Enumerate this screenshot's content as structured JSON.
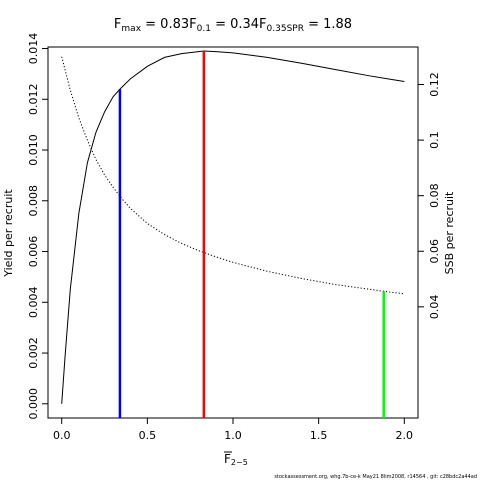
{
  "chart_data": {
    "type": "line",
    "title": {
      "fmax": {
        "main": "F",
        "sub": "max",
        "value": " = 0.83"
      },
      "f01": {
        "main": "F",
        "sub": "0.1",
        "value": " = 0.34"
      },
      "f035": {
        "main": "F",
        "sub": "0.35SPR",
        "value": " = 1.88"
      }
    },
    "xlabel": {
      "main": "F",
      "sub": "2−5",
      "overline": true
    },
    "ylabel_left": "Yield per recruit",
    "ylabel_right": "SSB per recruit",
    "xlim": [
      -0.08,
      2.08
    ],
    "ylim_left": [
      -0.00056,
      0.01406
    ],
    "ylim_right": [
      0.0,
      0.1335
    ],
    "x_ticks": [
      {
        "value": 0.0,
        "label": "0.0"
      },
      {
        "value": 0.5,
        "label": "0.5"
      },
      {
        "value": 1.0,
        "label": "1.0"
      },
      {
        "value": 1.5,
        "label": "1.5"
      },
      {
        "value": 2.0,
        "label": "2.0"
      }
    ],
    "y_left_ticks": [
      {
        "value": 0.0,
        "label": "0.000"
      },
      {
        "value": 0.002,
        "label": "0.002"
      },
      {
        "value": 0.004,
        "label": "0.004"
      },
      {
        "value": 0.006,
        "label": "0.006"
      },
      {
        "value": 0.008,
        "label": "0.008"
      },
      {
        "value": 0.01,
        "label": "0.010"
      },
      {
        "value": 0.012,
        "label": "0.012"
      },
      {
        "value": 0.014,
        "label": "0.014"
      }
    ],
    "y_right_ticks": [
      {
        "value": 0.04,
        "label": "0.04"
      },
      {
        "value": 0.06,
        "label": "0.06"
      },
      {
        "value": 0.08,
        "label": "0.08"
      },
      {
        "value": 0.1,
        "label": "0.1"
      },
      {
        "value": 0.12,
        "label": "0.12"
      }
    ],
    "series": [
      {
        "axis": "left",
        "color": "#000000",
        "style": "solid",
        "x": [
          0.0,
          0.02,
          0.05,
          0.1,
          0.15,
          0.2,
          0.25,
          0.3,
          0.34,
          0.4,
          0.5,
          0.6,
          0.7,
          0.83,
          0.9,
          1.0,
          1.2,
          1.4,
          1.6,
          1.8,
          2.0
        ],
        "values": [
          0.0,
          0.0019,
          0.0045,
          0.0075,
          0.0095,
          0.0107,
          0.0115,
          0.0121,
          0.0124,
          0.0128,
          0.0133,
          0.01365,
          0.0138,
          0.0139,
          0.01388,
          0.01383,
          0.01365,
          0.01342,
          0.01317,
          0.01292,
          0.0127
        ]
      },
      {
        "axis": "right",
        "color": "#000000",
        "style": "dotted",
        "x": [
          0.0,
          0.05,
          0.1,
          0.15,
          0.2,
          0.25,
          0.3,
          0.35,
          0.4,
          0.5,
          0.6,
          0.7,
          0.8,
          0.9,
          1.0,
          1.2,
          1.4,
          1.6,
          1.8,
          1.88,
          2.0
        ],
        "values": [
          0.13,
          0.118,
          0.108,
          0.1,
          0.093,
          0.0875,
          0.083,
          0.079,
          0.0755,
          0.07,
          0.066,
          0.0628,
          0.0602,
          0.058,
          0.056,
          0.0528,
          0.0502,
          0.048,
          0.0463,
          0.0456,
          0.0447
        ]
      }
    ],
    "reference_lines": [
      {
        "name": "F0.1",
        "x": 0.34,
        "axis": "left",
        "y": 0.0124,
        "color": "#0000ff"
      },
      {
        "name": "Fmax",
        "x": 0.83,
        "axis": "left",
        "y": 0.0139,
        "color": "#ff0000"
      },
      {
        "name": "F0.35SPR",
        "x": 1.88,
        "axis": "right",
        "y": 0.0456,
        "color": "#00ff00"
      }
    ],
    "footer": "stockassessment.org, whg.7b-ce-k  May21  8lim2008, r14564 ,  git: c28bdc2a44ad"
  }
}
